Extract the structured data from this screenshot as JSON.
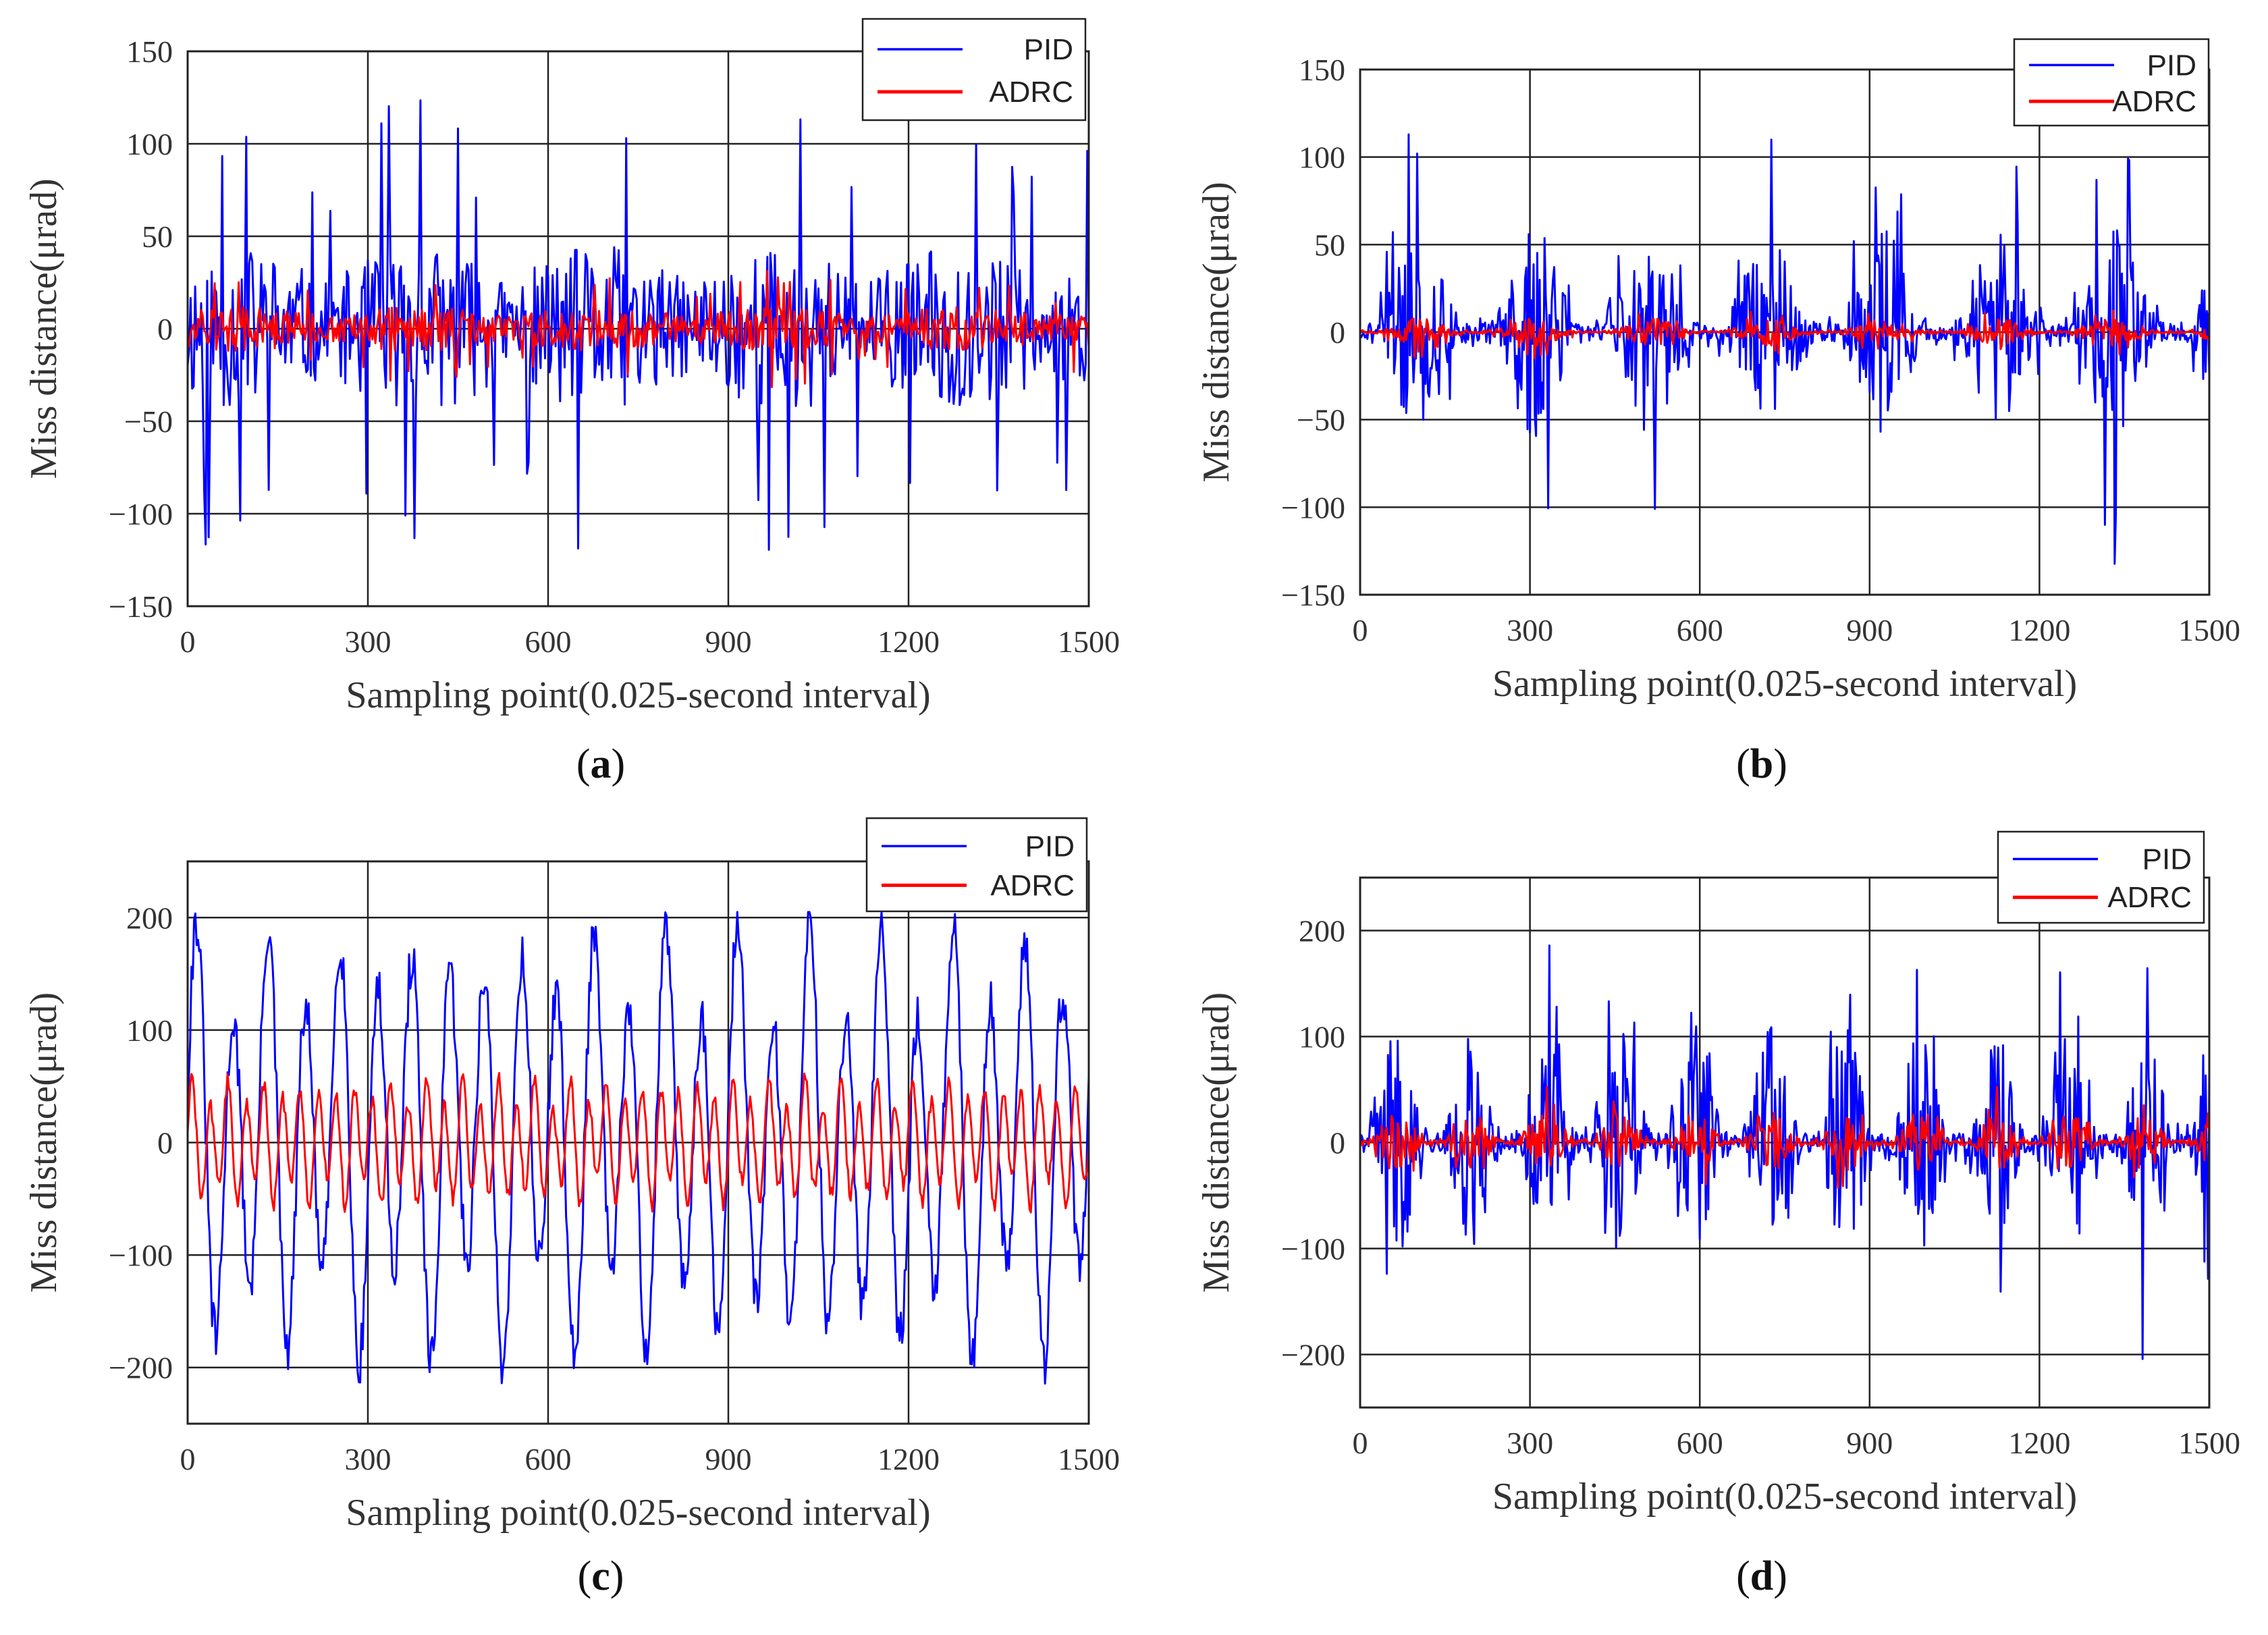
{
  "chart_data": [
    {
      "id": "a",
      "type": "line",
      "caption_letter": "a",
      "xlabel": "Sampling point(0.025-second interval)",
      "ylabel": "Miss distance(μrad)",
      "xlim": [
        0,
        1500
      ],
      "ylim": [
        -150,
        150
      ],
      "xticks": [
        0,
        300,
        600,
        900,
        1200,
        1500
      ],
      "yticks": [
        -150,
        -100,
        -50,
        0,
        50,
        100,
        150
      ],
      "ytick_labels": [
        "−150",
        "−100",
        "−50",
        "0",
        "50",
        "100",
        "150"
      ],
      "grid": true,
      "legend_position": "top-right",
      "series": [
        {
          "name": "PID",
          "color": "#0000ff",
          "style": "noise",
          "amplitude": 45,
          "peak": 128,
          "n": 600,
          "period": 300,
          "seed": 11
        },
        {
          "name": "ADRC",
          "color": "#ff0000",
          "style": "noise",
          "amplitude": 12,
          "peak": 32,
          "n": 600,
          "period": 300,
          "seed": 12
        }
      ]
    },
    {
      "id": "b",
      "type": "line",
      "caption_letter": "b",
      "xlabel": "Sampling point(0.025-second interval)",
      "ylabel": "Miss distance(μrad)",
      "xlim": [
        0,
        1500
      ],
      "ylim": [
        -150,
        150
      ],
      "xticks": [
        0,
        300,
        600,
        900,
        1200,
        1500
      ],
      "yticks": [
        -150,
        -100,
        -50,
        0,
        50,
        100,
        150
      ],
      "ytick_labels": [
        "−150",
        "−100",
        "−50",
        "0",
        "50",
        "100",
        "150"
      ],
      "grid": true,
      "legend_position": "top-right",
      "series": [
        {
          "name": "PID",
          "color": "#0000ff",
          "style": "bursts",
          "amplitude": 60,
          "peak": 135,
          "n": 700,
          "period": 205,
          "seed": 21
        },
        {
          "name": "ADRC",
          "color": "#ff0000",
          "style": "bursts",
          "amplitude": 8,
          "peak": 15,
          "n": 700,
          "period": 205,
          "seed": 22
        }
      ]
    },
    {
      "id": "c",
      "type": "line",
      "caption_letter": "c",
      "xlabel": "Sampling point(0.025-second interval)",
      "ylabel": "Miss distance(μrad)",
      "xlim": [
        0,
        1500
      ],
      "ylim": [
        -250,
        250
      ],
      "xticks": [
        0,
        300,
        600,
        900,
        1200,
        1500
      ],
      "yticks": [
        -200,
        -100,
        0,
        100,
        200
      ],
      "ytick_labels": [
        "−200",
        "−100",
        "0",
        "100",
        "200"
      ],
      "grid": true,
      "legend_position": "top-right",
      "series": [
        {
          "name": "PID",
          "color": "#0000ff",
          "style": "oscillation",
          "amplitude": 190,
          "peak": 205,
          "n": 700,
          "period": 60,
          "seed": 31
        },
        {
          "name": "ADRC",
          "color": "#ff0000",
          "style": "oscillation",
          "amplitude": 55,
          "peak": 65,
          "n": 700,
          "period": 30,
          "seed": 32
        }
      ]
    },
    {
      "id": "d",
      "type": "line",
      "caption_letter": "d",
      "xlabel": "Sampling point(0.025-second interval)",
      "ylabel": "Miss distance(μrad)",
      "xlim": [
        0,
        1500
      ],
      "ylim": [
        -250,
        250
      ],
      "xticks": [
        0,
        300,
        600,
        900,
        1200,
        1500
      ],
      "yticks": [
        -200,
        -100,
        0,
        100,
        200
      ],
      "ytick_labels": [
        "−200",
        "−100",
        "0",
        "100",
        "200"
      ],
      "grid": true,
      "legend_position": "top-right",
      "series": [
        {
          "name": "PID",
          "color": "#0000ff",
          "style": "bursts",
          "amplitude": 110,
          "peak": 215,
          "n": 700,
          "period": 132,
          "seed": 41
        },
        {
          "name": "ADRC",
          "color": "#ff0000",
          "style": "bursts",
          "amplitude": 30,
          "peak": 55,
          "n": 700,
          "period": 132,
          "seed": 42
        }
      ]
    }
  ]
}
